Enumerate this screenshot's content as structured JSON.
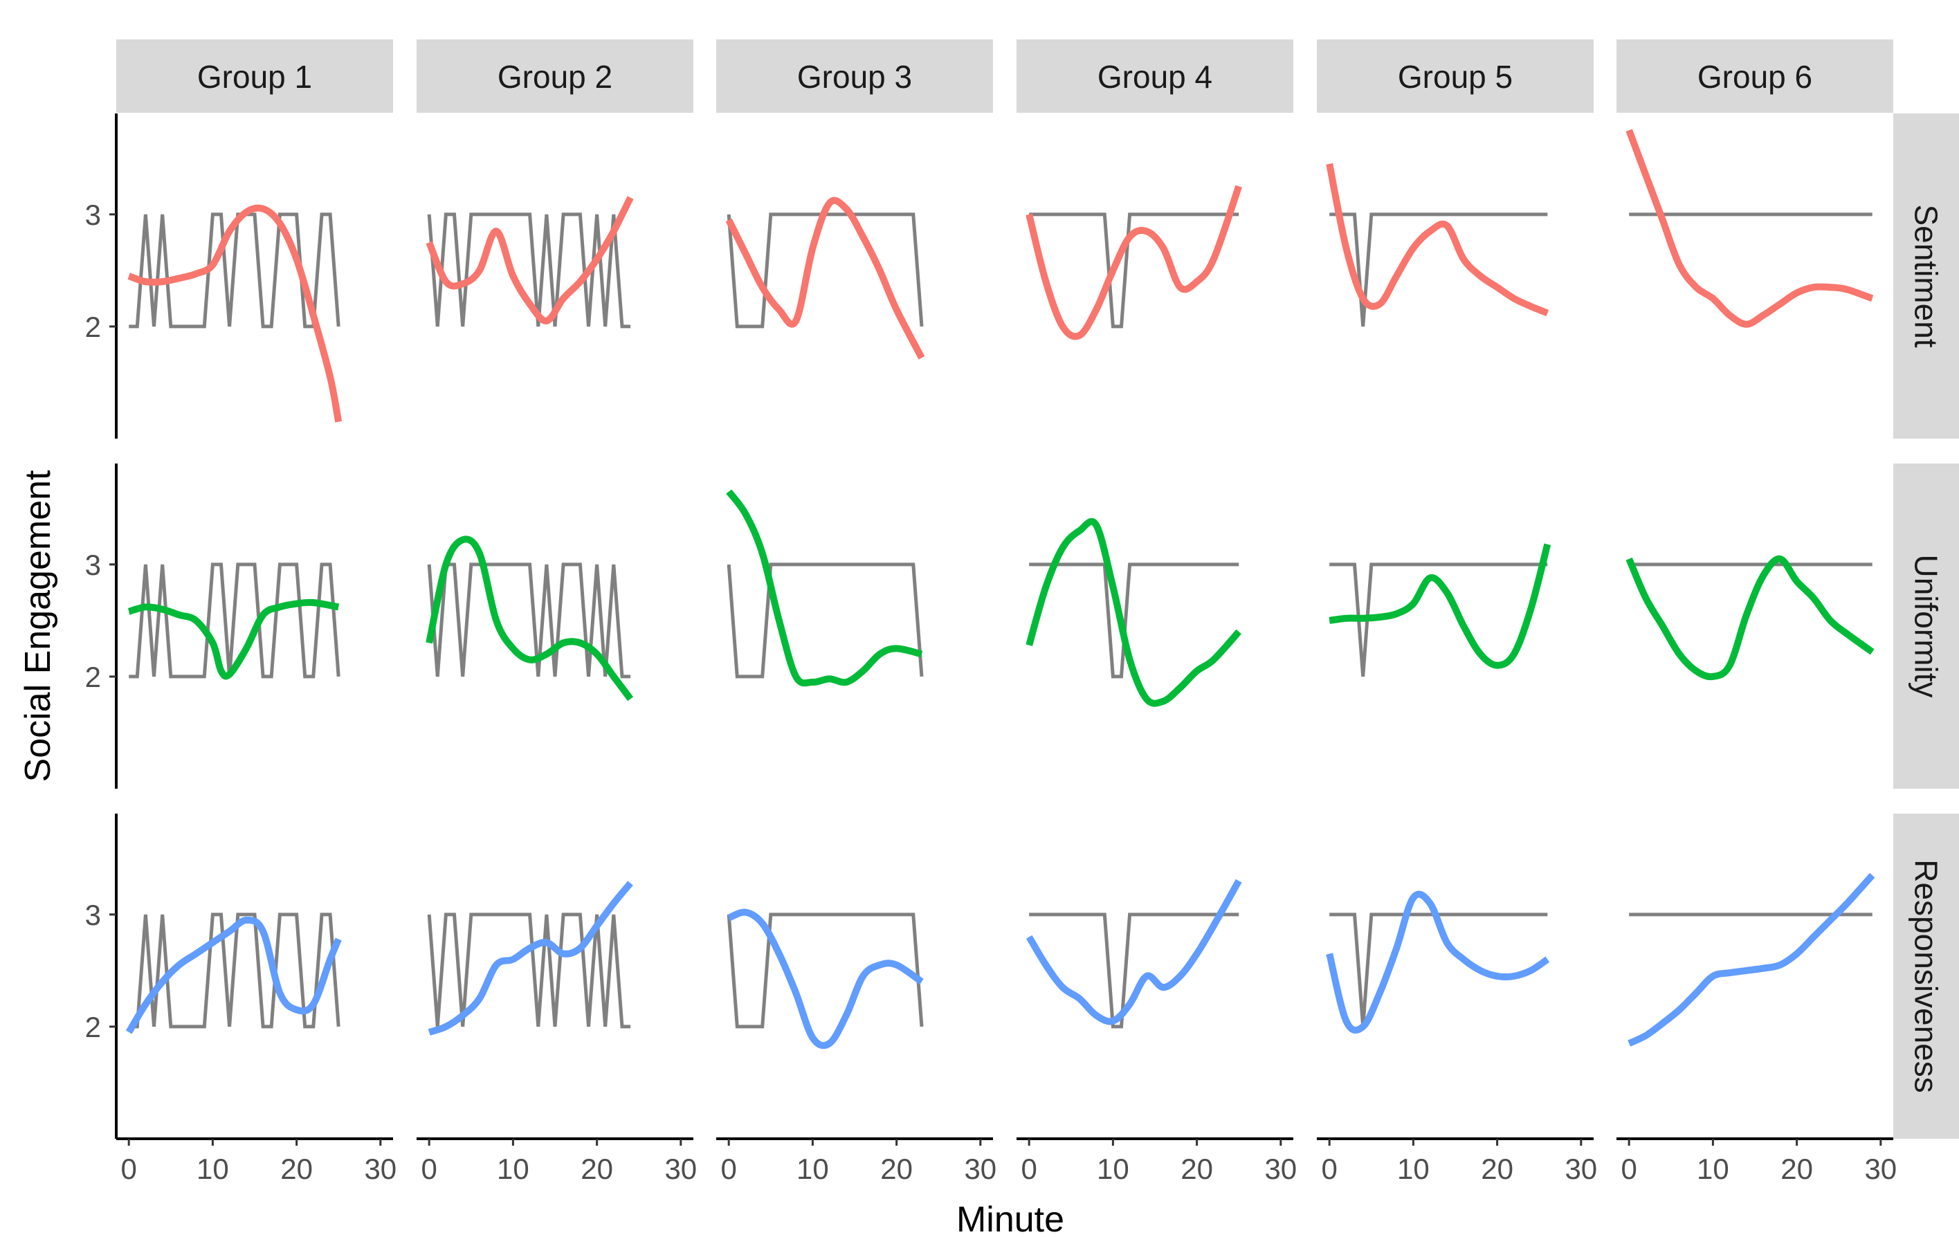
{
  "chart_data": {
    "type": "line",
    "xlabel": "Minute",
    "ylabel": "Social Engagement",
    "xlim": [
      -1.5,
      31.5
    ],
    "ylim": [
      1.0,
      3.9
    ],
    "x_ticks": [
      0,
      10,
      20,
      30
    ],
    "y_ticks": [
      2,
      3
    ],
    "columns": [
      "Group 1",
      "Group 2",
      "Group 3",
      "Group 4",
      "Group 5",
      "Group 6"
    ],
    "rows": [
      "Sentiment",
      "Uniformity",
      "Responsiveness"
    ],
    "row_colors": [
      "#F8766D",
      "#00BA38",
      "#619CFF"
    ],
    "raw_color": "#808080",
    "raw_series": [
      {
        "x": [
          0,
          1,
          2,
          3,
          4,
          5,
          9,
          10,
          11,
          12,
          13,
          14,
          15,
          16,
          17,
          18,
          19,
          20,
          21,
          22,
          23,
          24,
          25
        ],
        "y": [
          2,
          2,
          3,
          2,
          3,
          2,
          2,
          3,
          3,
          2,
          3,
          3,
          3,
          2,
          2,
          3,
          3,
          3,
          2,
          2,
          3,
          3,
          2
        ]
      },
      {
        "x": [
          0,
          1,
          2,
          3,
          4,
          5,
          12,
          13,
          14,
          15,
          16,
          17,
          18,
          19,
          20,
          21,
          22,
          23,
          24
        ],
        "y": [
          3,
          2,
          3,
          3,
          2,
          3,
          3,
          2,
          3,
          2,
          3,
          3,
          3,
          2,
          3,
          2,
          3,
          2,
          2
        ]
      },
      {
        "x": [
          0,
          1,
          4,
          5,
          22,
          23
        ],
        "y": [
          3,
          2,
          2,
          3,
          3,
          2
        ]
      },
      {
        "x": [
          0,
          9,
          10,
          11,
          12,
          25
        ],
        "y": [
          3,
          3,
          2,
          2,
          3,
          3
        ]
      },
      {
        "x": [
          0,
          3,
          4,
          5,
          26
        ],
        "y": [
          3,
          3,
          2,
          3,
          3
        ]
      },
      {
        "x": [
          0,
          29
        ],
        "y": [
          3,
          3
        ]
      }
    ],
    "smooth_series": [
      [
        {
          "x": [
            0,
            2,
            4,
            6,
            8,
            10,
            12,
            14,
            16,
            18,
            20,
            22,
            24,
            25
          ],
          "y": [
            2.45,
            2.4,
            2.4,
            2.43,
            2.47,
            2.55,
            2.85,
            3.02,
            3.05,
            2.92,
            2.6,
            2.1,
            1.55,
            1.15
          ]
        },
        {
          "x": [
            0,
            2,
            4,
            6,
            8,
            10,
            12,
            14,
            16,
            18,
            20,
            22,
            24
          ],
          "y": [
            2.75,
            2.4,
            2.38,
            2.5,
            2.85,
            2.45,
            2.2,
            2.05,
            2.25,
            2.4,
            2.6,
            2.85,
            3.15
          ]
        },
        {
          "x": [
            0,
            2,
            4,
            6,
            8,
            10,
            12,
            14,
            16,
            18,
            20,
            23
          ],
          "y": [
            2.95,
            2.65,
            2.35,
            2.15,
            2.05,
            2.7,
            3.1,
            3.05,
            2.8,
            2.5,
            2.15,
            1.72
          ]
        },
        {
          "x": [
            0,
            2,
            4,
            6,
            8,
            10,
            12,
            14,
            16,
            18,
            20,
            22,
            25
          ],
          "y": [
            3.0,
            2.4,
            2.0,
            1.92,
            2.15,
            2.5,
            2.8,
            2.85,
            2.7,
            2.35,
            2.4,
            2.6,
            3.25
          ]
        },
        {
          "x": [
            0,
            2,
            4,
            6,
            8,
            10,
            12,
            14,
            16,
            18,
            20,
            22,
            24,
            26
          ],
          "y": [
            3.45,
            2.7,
            2.25,
            2.2,
            2.45,
            2.7,
            2.85,
            2.9,
            2.6,
            2.45,
            2.35,
            2.25,
            2.18,
            2.12
          ]
        },
        {
          "x": [
            0,
            2,
            4,
            6,
            8,
            10,
            12,
            14,
            16,
            18,
            20,
            22,
            24,
            26,
            29
          ],
          "y": [
            3.75,
            3.35,
            2.95,
            2.55,
            2.35,
            2.25,
            2.1,
            2.02,
            2.1,
            2.2,
            2.3,
            2.35,
            2.35,
            2.33,
            2.25
          ]
        }
      ],
      [
        {
          "x": [
            0,
            2,
            4,
            6,
            8,
            10,
            11,
            12,
            14,
            16,
            18,
            20,
            22,
            25
          ],
          "y": [
            2.58,
            2.62,
            2.6,
            2.55,
            2.5,
            2.3,
            2.05,
            2.02,
            2.25,
            2.55,
            2.62,
            2.65,
            2.66,
            2.62
          ]
        },
        {
          "x": [
            0,
            2,
            4,
            6,
            8,
            10,
            12,
            14,
            16,
            18,
            20,
            22,
            24
          ],
          "y": [
            2.3,
            3.0,
            3.22,
            3.1,
            2.5,
            2.25,
            2.15,
            2.2,
            2.3,
            2.3,
            2.2,
            2.0,
            1.8
          ]
        },
        {
          "x": [
            0,
            2,
            4,
            6,
            8,
            10,
            12,
            14,
            16,
            18,
            20,
            23
          ],
          "y": [
            3.65,
            3.45,
            3.1,
            2.5,
            2.0,
            1.95,
            1.98,
            1.95,
            2.05,
            2.2,
            2.25,
            2.2
          ]
        },
        {
          "x": [
            0,
            2,
            4,
            6,
            8,
            10,
            12,
            14,
            16,
            18,
            20,
            22,
            25
          ],
          "y": [
            2.28,
            2.8,
            3.15,
            3.3,
            3.35,
            2.8,
            2.15,
            1.8,
            1.78,
            1.9,
            2.05,
            2.15,
            2.4
          ]
        },
        {
          "x": [
            0,
            2,
            4,
            6,
            8,
            10,
            12,
            14,
            16,
            18,
            20,
            22,
            24,
            26
          ],
          "y": [
            2.5,
            2.52,
            2.52,
            2.53,
            2.56,
            2.65,
            2.88,
            2.75,
            2.45,
            2.2,
            2.1,
            2.2,
            2.6,
            3.18
          ]
        },
        {
          "x": [
            0,
            2,
            4,
            6,
            8,
            10,
            12,
            14,
            16,
            18,
            20,
            22,
            24,
            26,
            29
          ],
          "y": [
            3.05,
            2.7,
            2.45,
            2.2,
            2.05,
            2.0,
            2.1,
            2.55,
            2.9,
            3.05,
            2.85,
            2.7,
            2.5,
            2.38,
            2.22
          ]
        }
      ],
      [
        {
          "x": [
            0,
            2,
            4,
            6,
            8,
            10,
            12,
            14,
            16,
            18,
            20,
            22,
            24,
            25
          ],
          "y": [
            1.95,
            2.2,
            2.4,
            2.55,
            2.65,
            2.75,
            2.85,
            2.95,
            2.85,
            2.3,
            2.15,
            2.2,
            2.6,
            2.78
          ]
        },
        {
          "x": [
            0,
            2,
            4,
            6,
            8,
            10,
            12,
            14,
            16,
            18,
            20,
            22,
            24
          ],
          "y": [
            1.95,
            2.0,
            2.1,
            2.25,
            2.55,
            2.6,
            2.7,
            2.75,
            2.65,
            2.7,
            2.9,
            3.1,
            3.28
          ]
        },
        {
          "x": [
            0,
            2,
            4,
            6,
            8,
            10,
            12,
            14,
            16,
            18,
            20,
            23
          ],
          "y": [
            2.97,
            3.02,
            2.92,
            2.65,
            2.3,
            1.9,
            1.85,
            2.1,
            2.45,
            2.55,
            2.55,
            2.4
          ]
        },
        {
          "x": [
            0,
            2,
            4,
            6,
            8,
            10,
            12,
            14,
            16,
            18,
            20,
            22,
            25
          ],
          "y": [
            2.8,
            2.55,
            2.35,
            2.25,
            2.1,
            2.05,
            2.2,
            2.45,
            2.35,
            2.45,
            2.65,
            2.9,
            3.3
          ]
        },
        {
          "x": [
            0,
            2,
            4,
            6,
            8,
            10,
            12,
            14,
            16,
            18,
            20,
            22,
            24,
            26
          ],
          "y": [
            2.65,
            2.05,
            2.0,
            2.3,
            2.7,
            3.15,
            3.1,
            2.75,
            2.6,
            2.5,
            2.45,
            2.45,
            2.5,
            2.6
          ]
        },
        {
          "x": [
            0,
            2,
            4,
            6,
            8,
            10,
            12,
            14,
            16,
            18,
            20,
            22,
            24,
            26,
            29
          ],
          "y": [
            1.85,
            1.92,
            2.03,
            2.15,
            2.3,
            2.45,
            2.48,
            2.5,
            2.52,
            2.55,
            2.65,
            2.8,
            2.95,
            3.1,
            3.35
          ]
        }
      ]
    ]
  }
}
